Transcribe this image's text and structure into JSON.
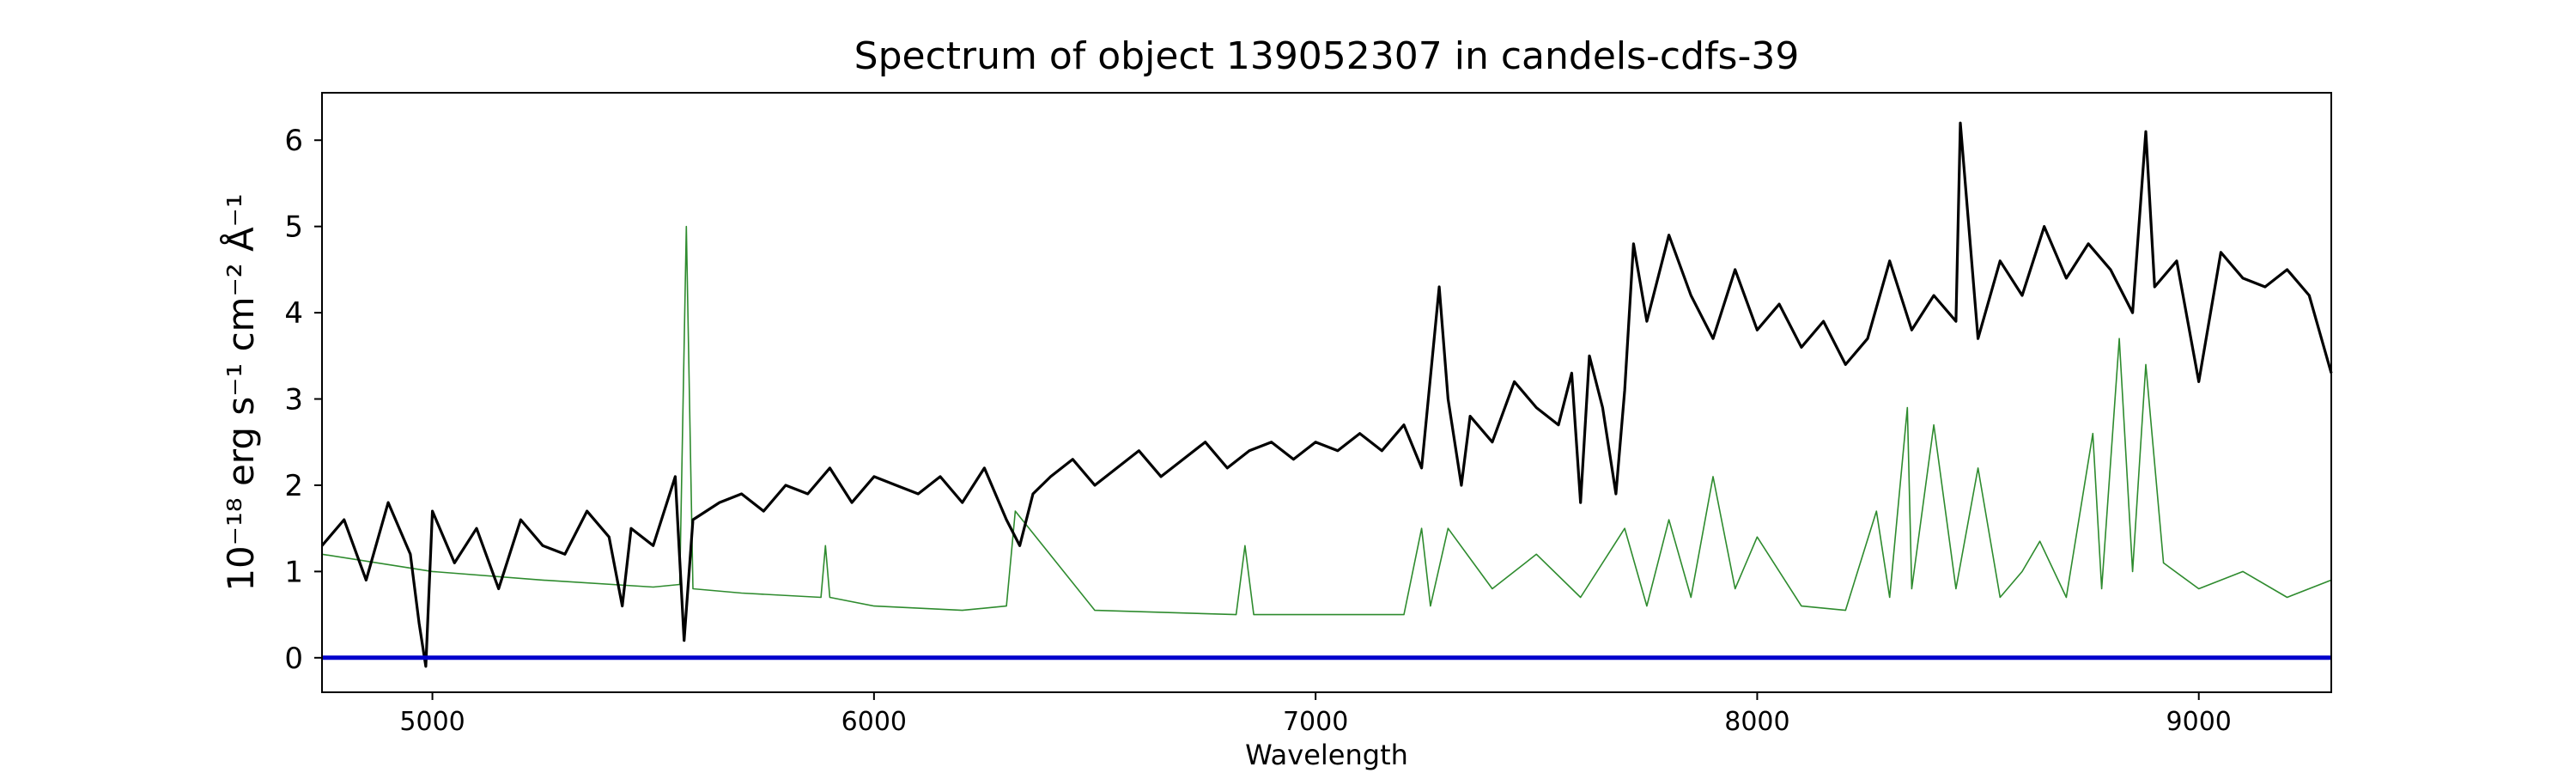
{
  "chart_data": {
    "type": "line",
    "title": "Spectrum of object 139052307 in candels-cdfs-39",
    "xlabel": "Wavelength",
    "ylabel": "10⁻¹⁸ erg s⁻¹ cm⁻² Å⁻¹",
    "xlim": [
      4750,
      9300
    ],
    "ylim": [
      -0.4,
      6.55
    ],
    "xticks": [
      5000,
      6000,
      7000,
      8000,
      9000
    ],
    "yticks": [
      0,
      1,
      2,
      3,
      4,
      5,
      6
    ],
    "grid": false,
    "legend": "none",
    "series": [
      {
        "role": "observed flux",
        "color": "#000000",
        "x": [
          4750,
          4800,
          4850,
          4900,
          4950,
          4970,
          4985,
          5000,
          5050,
          5100,
          5150,
          5200,
          5250,
          5300,
          5350,
          5400,
          5430,
          5450,
          5500,
          5550,
          5570,
          5590,
          5650,
          5700,
          5750,
          5800,
          5850,
          5900,
          5950,
          6000,
          6050,
          6100,
          6150,
          6200,
          6250,
          6300,
          6330,
          6360,
          6400,
          6450,
          6500,
          6550,
          6600,
          6650,
          6700,
          6750,
          6800,
          6850,
          6900,
          6950,
          7000,
          7050,
          7100,
          7150,
          7200,
          7240,
          7280,
          7300,
          7330,
          7350,
          7400,
          7450,
          7500,
          7550,
          7580,
          7600,
          7620,
          7650,
          7680,
          7700,
          7720,
          7750,
          7800,
          7850,
          7900,
          7950,
          8000,
          8050,
          8100,
          8150,
          8200,
          8250,
          8300,
          8350,
          8400,
          8450,
          8460,
          8500,
          8550,
          8600,
          8650,
          8700,
          8750,
          8800,
          8850,
          8880,
          8900,
          8950,
          9000,
          9050,
          9100,
          9150,
          9200,
          9250,
          9300
        ],
        "values": [
          1.3,
          1.6,
          0.9,
          1.8,
          1.2,
          0.4,
          -0.1,
          1.7,
          1.1,
          1.5,
          0.8,
          1.6,
          1.3,
          1.2,
          1.7,
          1.4,
          0.6,
          1.5,
          1.3,
          2.1,
          0.2,
          1.6,
          1.8,
          1.9,
          1.7,
          2.0,
          1.9,
          2.2,
          1.8,
          2.1,
          2.0,
          1.9,
          2.1,
          1.8,
          2.2,
          1.6,
          1.3,
          1.9,
          2.1,
          2.3,
          2.0,
          2.2,
          2.4,
          2.1,
          2.3,
          2.5,
          2.2,
          2.4,
          2.5,
          2.3,
          2.5,
          2.4,
          2.6,
          2.4,
          2.7,
          2.2,
          4.3,
          3.0,
          2.0,
          2.8,
          2.5,
          3.2,
          2.9,
          2.7,
          3.3,
          1.8,
          3.5,
          2.9,
          1.9,
          3.1,
          4.8,
          3.9,
          4.9,
          4.2,
          3.7,
          4.5,
          3.8,
          4.1,
          3.6,
          3.9,
          3.4,
          3.7,
          4.6,
          3.8,
          4.2,
          3.9,
          6.2,
          3.7,
          4.6,
          4.2,
          5.0,
          4.4,
          4.8,
          4.5,
          4.0,
          6.1,
          4.3,
          4.6,
          3.2,
          4.7,
          4.4,
          4.3,
          4.5,
          4.2,
          3.3
        ]
      },
      {
        "role": "sky / model",
        "color": "#2e8b2e",
        "x": [
          4750,
          5000,
          5250,
          5500,
          5560,
          5575,
          5590,
          5700,
          5880,
          5890,
          5900,
          6000,
          6200,
          6300,
          6320,
          6500,
          6820,
          6840,
          6860,
          7000,
          7200,
          7240,
          7260,
          7300,
          7400,
          7500,
          7600,
          7700,
          7750,
          7800,
          7850,
          7900,
          7950,
          8000,
          8100,
          8200,
          8270,
          8300,
          8340,
          8350,
          8400,
          8450,
          8500,
          8550,
          8600,
          8640,
          8700,
          8760,
          8780,
          8820,
          8850,
          8880,
          8920,
          9000,
          9100,
          9200,
          9300
        ],
        "values": [
          1.2,
          1.0,
          0.9,
          0.82,
          0.85,
          5.0,
          0.8,
          0.75,
          0.7,
          1.3,
          0.7,
          0.6,
          0.55,
          0.6,
          1.7,
          0.55,
          0.5,
          1.3,
          0.5,
          0.5,
          0.5,
          1.5,
          0.6,
          1.5,
          0.8,
          1.2,
          0.7,
          1.5,
          0.6,
          1.6,
          0.7,
          2.1,
          0.8,
          1.4,
          0.6,
          0.55,
          1.7,
          0.7,
          2.9,
          0.8,
          2.7,
          0.8,
          2.2,
          0.7,
          1.0,
          1.35,
          0.7,
          2.6,
          0.8,
          3.7,
          1.0,
          3.4,
          1.1,
          0.8,
          1.0,
          0.7,
          0.9
        ]
      },
      {
        "role": "zero level",
        "color": "#0000cc",
        "x": [
          4750,
          9300
        ],
        "values": [
          0,
          0
        ]
      }
    ]
  }
}
